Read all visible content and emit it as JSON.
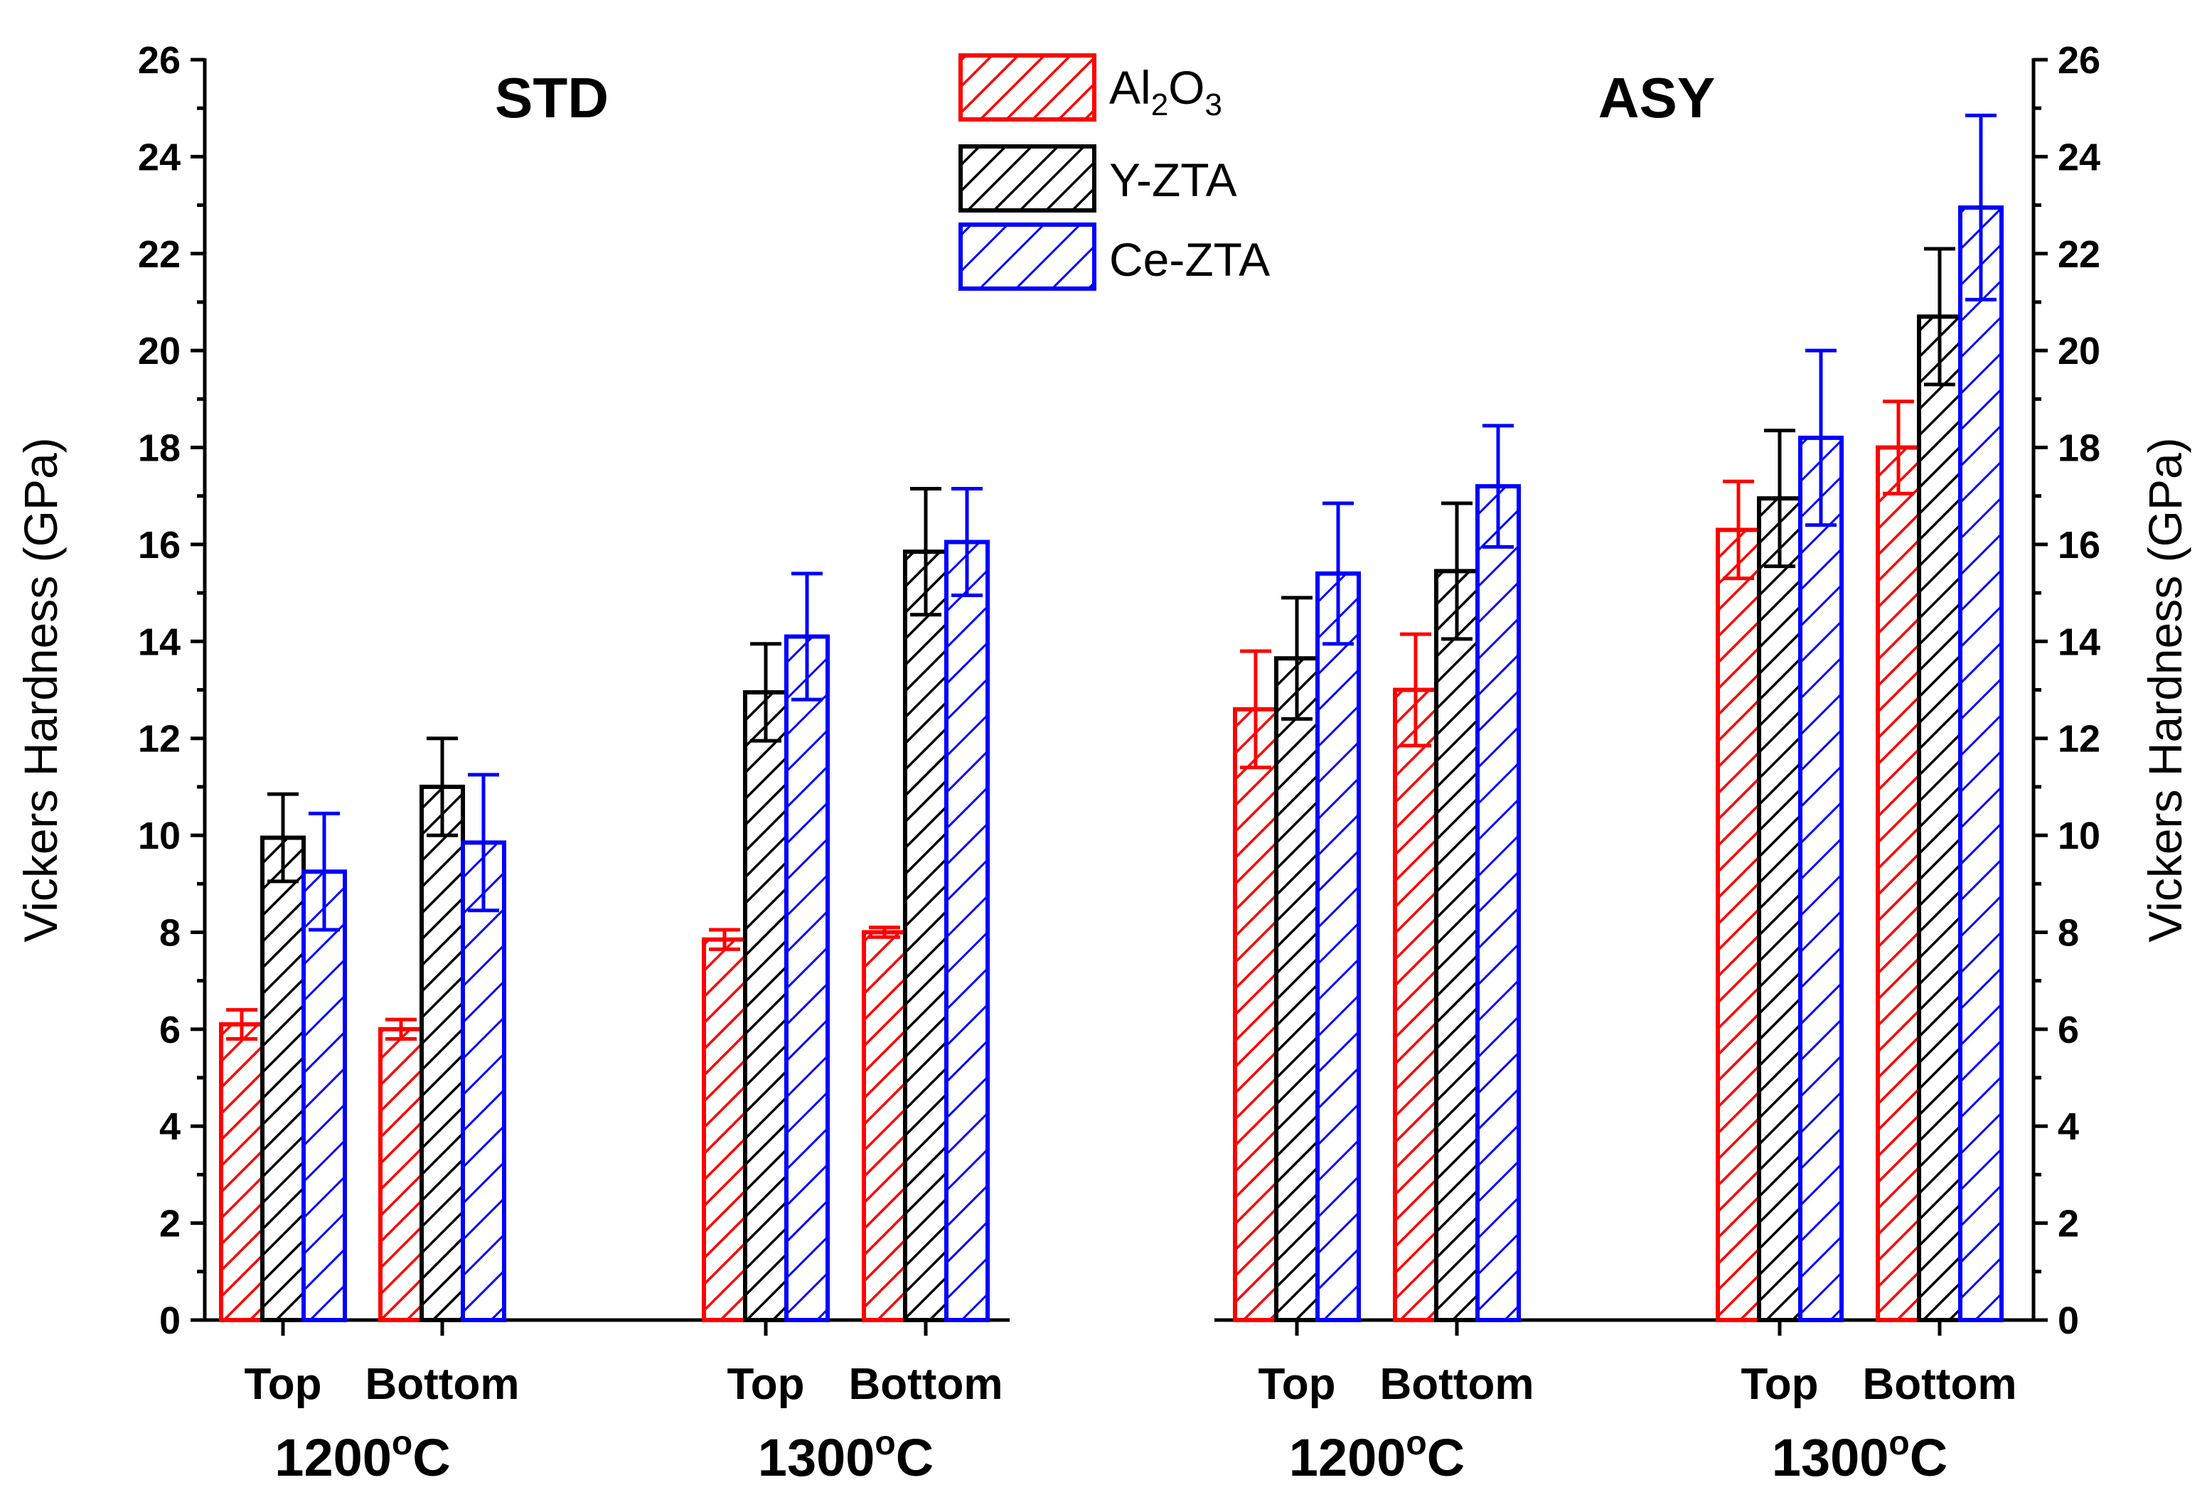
{
  "chart_data": {
    "type": "bar",
    "y_axis": {
      "label": "Vickers Hardness (GPa)",
      "ylim": [
        0,
        26
      ],
      "ticks": [
        0,
        2,
        4,
        6,
        8,
        10,
        12,
        14,
        16,
        18,
        20,
        22,
        24,
        26
      ]
    },
    "legend": [
      {
        "name": "Al2O3",
        "base": "Al",
        "sub1": "2",
        "mid": "O",
        "sub2": "3",
        "color": "#ff0000"
      },
      {
        "name": "Y-ZTA",
        "color": "#000000"
      },
      {
        "name": "Ce-ZTA",
        "color": "#0000ff"
      }
    ],
    "legend_placement": "top-center",
    "panels": [
      {
        "title": "STD",
        "groups": [
          {
            "label": "1200",
            "label_sup": "o",
            "label_unit": "C",
            "categories": [
              {
                "label": "Top",
                "values": [
                  6.1,
                  9.95,
                  9.25
                ],
                "errors": [
                  0.3,
                  0.9,
                  1.2
                ]
              },
              {
                "label": "Bottom",
                "values": [
                  6.0,
                  11.0,
                  9.85
                ],
                "errors": [
                  0.2,
                  1.0,
                  1.4
                ]
              }
            ]
          },
          {
            "label": "1300",
            "label_sup": "o",
            "label_unit": "C",
            "categories": [
              {
                "label": "Top",
                "values": [
                  7.85,
                  12.95,
                  14.1
                ],
                "errors": [
                  0.2,
                  1.0,
                  1.3
                ]
              },
              {
                "label": "Bottom",
                "values": [
                  8.0,
                  15.85,
                  16.05
                ],
                "errors": [
                  0.1,
                  1.3,
                  1.1
                ]
              }
            ]
          }
        ]
      },
      {
        "title": "ASY",
        "groups": [
          {
            "label": "1200",
            "label_sup": "o",
            "label_unit": "C",
            "categories": [
              {
                "label": "Top",
                "values": [
                  12.6,
                  13.65,
                  15.4
                ],
                "errors": [
                  1.2,
                  1.25,
                  1.45
                ]
              },
              {
                "label": "Bottom",
                "values": [
                  13.0,
                  15.45,
                  17.2
                ],
                "errors": [
                  1.15,
                  1.4,
                  1.25
                ]
              }
            ]
          },
          {
            "label": "1300",
            "label_sup": "o",
            "label_unit": "C",
            "categories": [
              {
                "label": "Top",
                "values": [
                  16.3,
                  16.95,
                  18.2
                ],
                "errors": [
                  1.0,
                  1.4,
                  1.8
                ]
              },
              {
                "label": "Bottom",
                "values": [
                  18.0,
                  20.7,
                  22.95
                ],
                "errors": [
                  0.95,
                  1.4,
                  1.9
                ]
              }
            ]
          }
        ]
      }
    ]
  }
}
